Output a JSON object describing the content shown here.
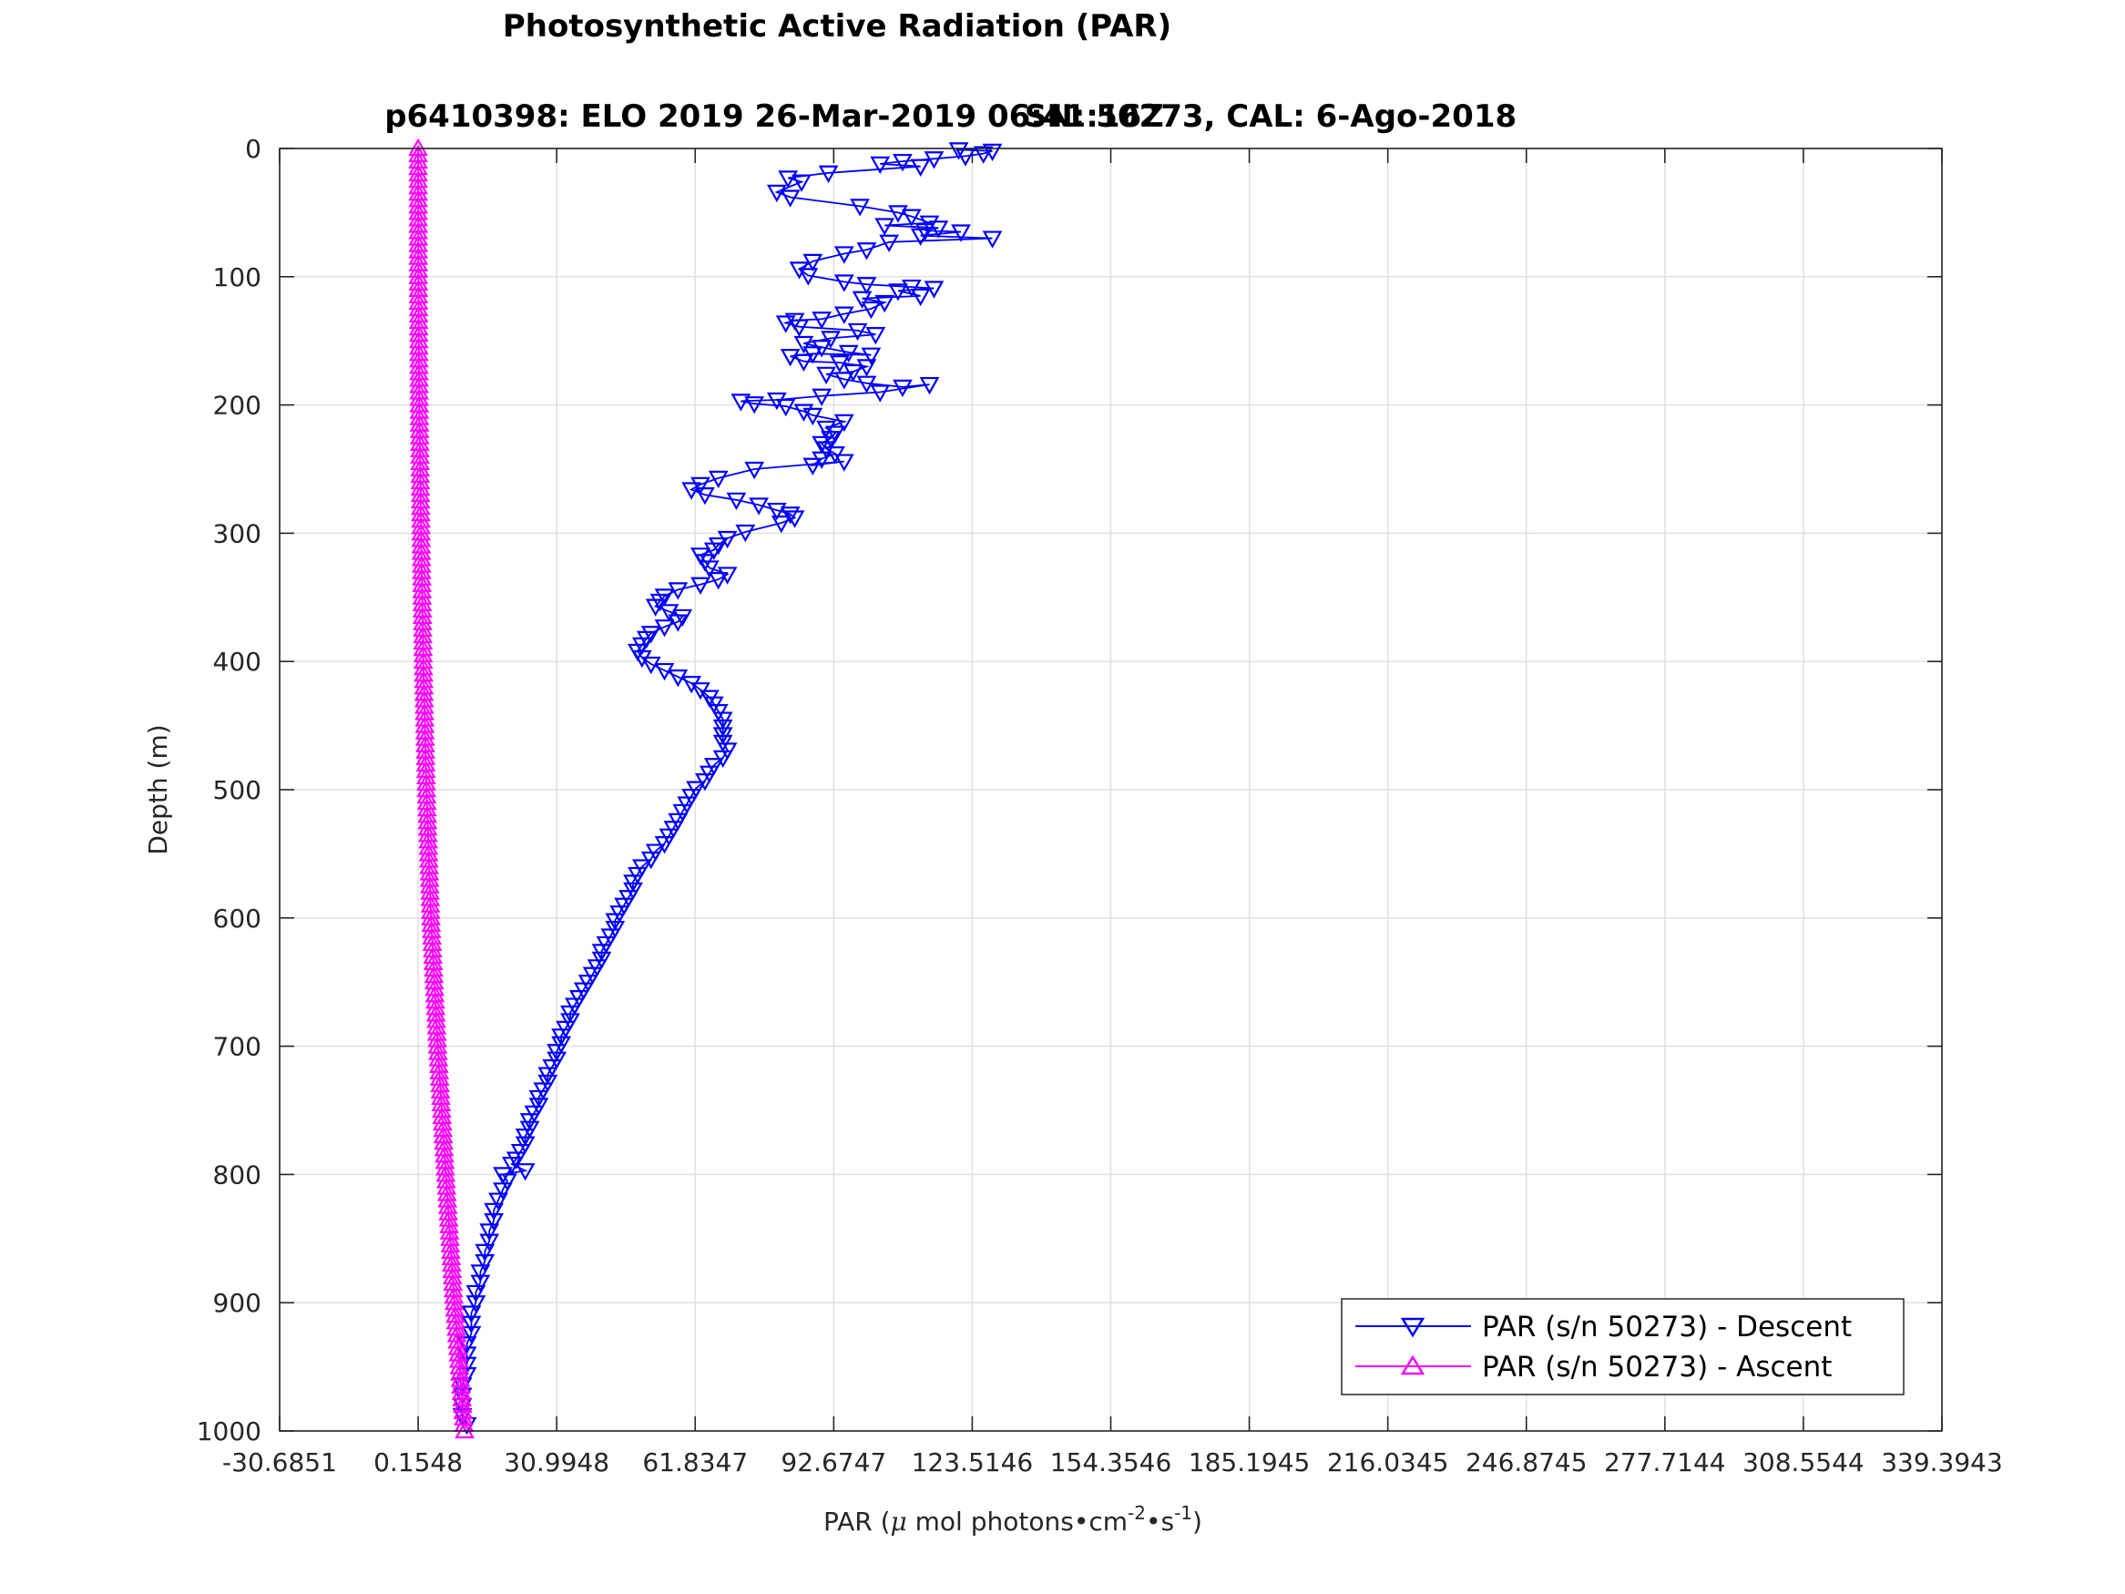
{
  "chart_data": {
    "type": "line",
    "title": "Photosynthetic Active Radiation (PAR)",
    "subtitle_left": "p6410398: ELO 2019 26-Mar-2019 06:41:16Z",
    "subtitle_right": "SN: 50273, CAL: 6-Ago-2018",
    "xlabel": {
      "pre": "PAR (",
      "mu": "μ",
      "mid": " mol photons•cm",
      "sup1": "-2",
      "mid2": "•s",
      "sup2": "-1",
      "post": ")"
    },
    "ylabel": "Depth (m)",
    "xlim": [
      -30.6851,
      339.3943
    ],
    "ylim": [
      0,
      1000
    ],
    "y_reversed": true,
    "grid": true,
    "legend_location": "bottom-right",
    "x_tick_values": [
      -30.6851,
      0.1548,
      30.9948,
      61.8347,
      92.6747,
      123.5146,
      154.3546,
      185.1945,
      216.0345,
      246.8745,
      277.7144,
      308.5544,
      339.3943
    ],
    "x_tick_labels": [
      "-30.6851",
      "0.1548",
      "30.9948",
      "61.8347",
      "92.6747",
      "123.5146",
      "154.3546",
      "185.1945",
      "216.0345",
      "246.8745",
      "277.7144",
      "308.5544",
      "339.3943"
    ],
    "y_tick_values": [
      0,
      100,
      200,
      300,
      400,
      500,
      600,
      700,
      800,
      900,
      1000
    ],
    "y_tick_labels": [
      "0",
      "100",
      "200",
      "300",
      "400",
      "500",
      "600",
      "700",
      "800",
      "900",
      "1000"
    ],
    "series": [
      {
        "name": "PAR (s/n 50273) - Descent",
        "color": "#0000ff",
        "marker": "triangle-down",
        "points": [
          [
            120.5,
            1
          ],
          [
            128,
            2
          ],
          [
            126,
            4
          ],
          [
            122,
            6
          ],
          [
            115,
            8
          ],
          [
            108,
            10
          ],
          [
            103,
            12
          ],
          [
            112,
            14
          ],
          [
            91.5,
            19
          ],
          [
            82.5,
            23
          ],
          [
            85.5,
            26
          ],
          [
            80,
            34
          ],
          [
            83,
            38
          ],
          [
            98.5,
            45
          ],
          [
            107,
            50
          ],
          [
            110,
            53
          ],
          [
            114,
            58
          ],
          [
            104,
            60
          ],
          [
            116,
            62
          ],
          [
            113,
            64
          ],
          [
            121,
            65
          ],
          [
            112,
            68
          ],
          [
            128,
            70
          ],
          [
            105,
            73
          ],
          [
            100,
            79
          ],
          [
            95,
            82
          ],
          [
            88,
            88
          ],
          [
            85,
            94
          ],
          [
            87,
            99
          ],
          [
            95,
            104
          ],
          [
            100,
            106
          ],
          [
            110,
            108
          ],
          [
            115,
            109
          ],
          [
            107,
            111
          ],
          [
            112,
            115
          ],
          [
            99,
            117
          ],
          [
            104,
            120
          ],
          [
            101,
            125
          ],
          [
            95,
            129
          ],
          [
            90,
            133
          ],
          [
            84,
            134
          ],
          [
            82,
            136
          ],
          [
            85,
            139
          ],
          [
            98,
            142
          ],
          [
            102,
            145
          ],
          [
            92,
            148
          ],
          [
            86,
            152
          ],
          [
            90,
            155
          ],
          [
            96,
            159
          ],
          [
            101,
            161
          ],
          [
            88,
            160
          ],
          [
            83,
            162
          ],
          [
            86,
            166
          ],
          [
            94,
            167
          ],
          [
            100,
            170
          ],
          [
            97,
            174
          ],
          [
            91,
            176
          ],
          [
            95,
            180
          ],
          [
            100,
            183
          ],
          [
            108,
            186
          ],
          [
            114,
            184
          ],
          [
            103,
            190
          ],
          [
            90,
            193
          ],
          [
            80,
            196
          ],
          [
            72,
            197
          ],
          [
            75,
            199
          ],
          [
            82,
            201
          ],
          [
            86,
            205
          ],
          [
            88,
            208
          ],
          [
            95,
            213
          ],
          [
            91,
            218
          ],
          [
            93,
            222
          ],
          [
            92,
            226
          ],
          [
            90,
            230
          ],
          [
            91,
            234
          ],
          [
            93,
            238
          ],
          [
            90,
            242
          ],
          [
            88,
            247
          ],
          [
            95,
            244
          ],
          [
            75,
            250
          ],
          [
            67,
            257
          ],
          [
            63,
            262
          ],
          [
            61,
            266
          ],
          [
            64,
            270
          ],
          [
            71,
            274
          ],
          [
            76,
            278
          ],
          [
            80,
            282
          ],
          [
            83,
            285
          ],
          [
            84,
            288
          ],
          [
            81,
            292
          ],
          [
            73,
            299
          ],
          [
            69,
            304
          ],
          [
            67,
            309
          ],
          [
            66,
            313
          ],
          [
            63,
            317
          ],
          [
            64,
            322
          ],
          [
            65,
            327
          ],
          [
            69,
            332
          ],
          [
            67,
            336
          ],
          [
            63,
            340
          ],
          [
            58,
            344
          ],
          [
            55,
            349
          ],
          [
            54,
            353
          ],
          [
            53,
            357
          ],
          [
            56,
            361
          ],
          [
            59,
            365
          ],
          [
            58,
            369
          ],
          [
            55,
            373
          ],
          [
            52,
            378
          ],
          [
            51,
            382
          ],
          [
            50,
            387
          ],
          [
            49,
            392
          ],
          [
            50,
            397
          ],
          [
            52,
            402
          ],
          [
            55,
            407
          ],
          [
            58,
            412
          ],
          [
            61,
            417
          ],
          [
            63,
            422
          ],
          [
            65,
            428
          ],
          [
            66,
            433
          ],
          [
            67,
            439
          ],
          [
            68,
            445
          ],
          [
            68,
            451
          ],
          [
            68,
            457
          ],
          [
            68,
            463
          ],
          [
            69,
            469
          ],
          [
            68,
            475
          ],
          [
            66,
            481
          ],
          [
            65,
            487
          ],
          [
            64,
            493
          ],
          [
            62,
            499
          ],
          [
            61,
            505
          ],
          [
            60,
            511
          ],
          [
            59,
            517
          ],
          [
            58,
            524
          ],
          [
            57,
            530
          ],
          [
            56,
            536
          ],
          [
            55,
            542
          ],
          [
            53,
            548
          ],
          [
            52,
            554
          ],
          [
            50,
            560
          ],
          [
            49,
            566
          ],
          [
            48,
            572
          ],
          [
            48,
            578
          ],
          [
            47,
            584
          ],
          [
            46,
            590
          ],
          [
            45,
            596
          ],
          [
            44,
            602
          ],
          [
            44,
            608
          ],
          [
            43,
            614
          ],
          [
            42,
            620
          ],
          [
            41,
            626
          ],
          [
            41,
            632
          ],
          [
            40,
            638
          ],
          [
            39,
            644
          ],
          [
            38,
            650
          ],
          [
            37,
            656
          ],
          [
            36,
            662
          ],
          [
            35,
            668
          ],
          [
            34,
            674
          ],
          [
            34,
            680
          ],
          [
            33,
            686
          ],
          [
            32,
            692
          ],
          [
            32,
            698
          ],
          [
            31,
            704
          ],
          [
            31,
            710
          ],
          [
            30,
            716
          ],
          [
            29,
            722
          ],
          [
            29,
            728
          ],
          [
            28,
            734
          ],
          [
            27,
            740
          ],
          [
            27,
            746
          ],
          [
            26,
            752
          ],
          [
            25,
            758
          ],
          [
            25,
            764
          ],
          [
            24,
            770
          ],
          [
            24,
            776
          ],
          [
            23,
            782
          ],
          [
            22,
            788
          ],
          [
            21,
            792
          ],
          [
            24,
            797
          ],
          [
            19,
            800
          ],
          [
            20,
            805
          ],
          [
            19,
            812
          ],
          [
            18,
            820
          ],
          [
            17,
            828
          ],
          [
            17,
            836
          ],
          [
            16,
            844
          ],
          [
            16,
            852
          ],
          [
            15,
            860
          ],
          [
            15,
            868
          ],
          [
            14,
            876
          ],
          [
            14,
            884
          ],
          [
            13,
            892
          ],
          [
            13,
            900
          ],
          [
            12,
            908
          ],
          [
            12,
            916
          ],
          [
            12,
            924
          ],
          [
            11,
            932
          ],
          [
            11,
            940
          ],
          [
            11,
            948
          ],
          [
            11,
            956
          ],
          [
            10,
            964
          ],
          [
            10,
            972
          ],
          [
            10,
            980
          ],
          [
            10,
            988
          ],
          [
            11,
            995
          ]
        ]
      },
      {
        "name": "PAR (s/n 50273) - Ascent",
        "color": "#ff00ff",
        "marker": "triangle-up",
        "points": [
          [
            0.15,
            0
          ],
          [
            0.2,
            100
          ],
          [
            0.4,
            200
          ],
          [
            0.8,
            300
          ],
          [
            1.3,
            400
          ],
          [
            2.0,
            500
          ],
          [
            3.0,
            600
          ],
          [
            4.5,
            700
          ],
          [
            6.3,
            800
          ],
          [
            8.2,
            900
          ],
          [
            10.5,
            1000
          ]
        ]
      }
    ]
  }
}
